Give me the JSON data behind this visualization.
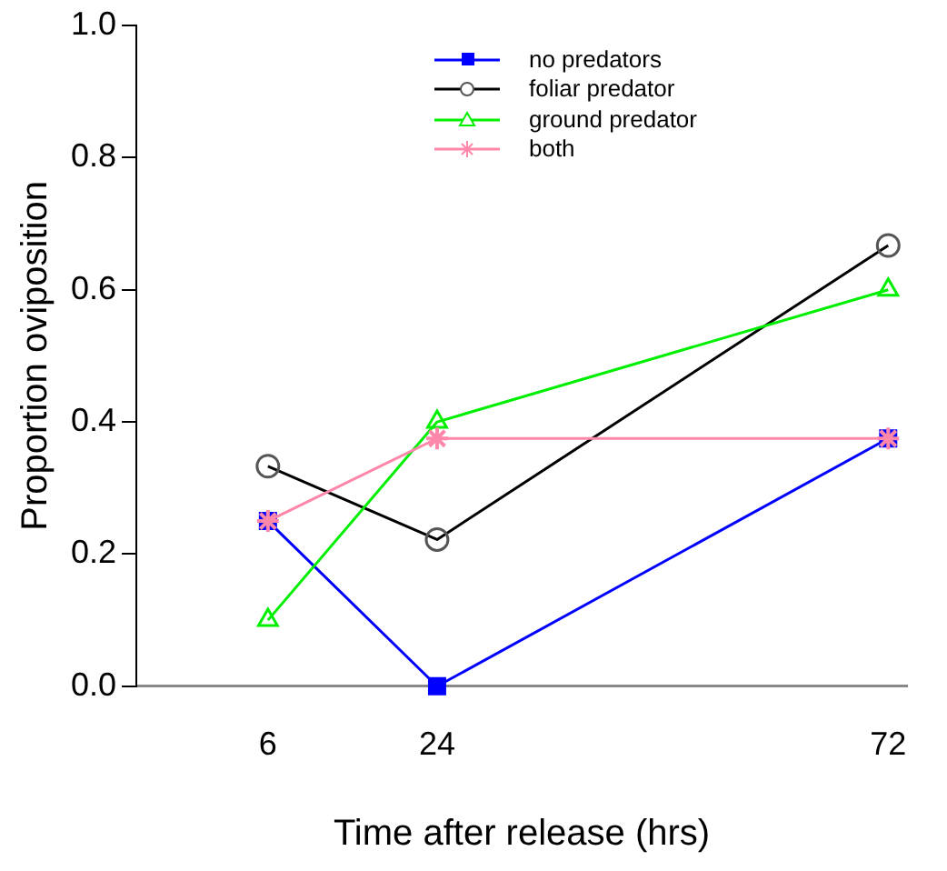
{
  "chart_data": {
    "type": "line",
    "xlabel": "Time after release (hrs)",
    "ylabel": "Proportion oviposition",
    "x": [
      6,
      24,
      72
    ],
    "xlim": [
      -8,
      74
    ],
    "xticks": [
      6,
      24,
      72
    ],
    "ylim": [
      0,
      1
    ],
    "yticks": [
      {
        "value": 0,
        "label": "0.0"
      },
      0.2,
      0.4,
      0.6,
      0.8,
      {
        "value": 1,
        "label": "1.0"
      }
    ],
    "grid": false,
    "legend": "top right",
    "line_style": "solid",
    "series": [
      {
        "name": "no predators",
        "color": "#0000ff",
        "marker": "square",
        "values": [
          0.25,
          0,
          0.375
        ]
      },
      {
        "name": "foliar predator",
        "color": "#000000",
        "marker": "circle",
        "values": [
          0.333,
          0.222,
          0.667
        ]
      },
      {
        "name": "ground predator",
        "color": "#00ee00",
        "marker": "triangle",
        "values": [
          0.1,
          0.4,
          0.6
        ]
      },
      {
        "name": "both",
        "color": "#ff88aa",
        "marker": "cross",
        "values": [
          0.25,
          0.375,
          0.375
        ]
      }
    ]
  }
}
